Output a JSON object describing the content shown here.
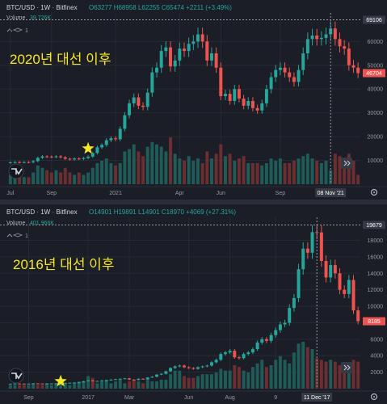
{
  "charts": [
    {
      "header": {
        "symbol": "BTC/USD",
        "interval": "1W",
        "exchange": "Bitfinex",
        "open": "O63277",
        "high": "H68958",
        "low": "L62255",
        "close": "C65474",
        "change": "+2211 (+3.49%)"
      },
      "volume_label": "Volume",
      "volume_value": "39.726K",
      "indicator_count": "1",
      "overlay_text": "2020년 대선 이후",
      "price_ticks": [
        "60000",
        "50000",
        "40000",
        "30000",
        "20000",
        "10000"
      ],
      "price_tick_values": [
        60000,
        50000,
        40000,
        30000,
        20000,
        10000
      ],
      "time_labels": [
        "Jul",
        "Sep",
        "2021",
        "Apr",
        "Jun",
        "Sep"
      ],
      "time_label_idx": [
        0,
        9,
        23,
        37,
        46,
        59
      ],
      "crosshair_time": "08 Nov '21",
      "crosshair_idx": 70,
      "high_label": "69106",
      "high_value": 69106,
      "last_label": "46704",
      "last_value": 46704,
      "star_idx": 17,
      "star_price": 15000,
      "colors": {
        "up": "#26a69a",
        "down": "#ef5350",
        "vol_up": "#1f5b57",
        "vol_down": "#6b2e31",
        "star": "#f5e629"
      }
    },
    {
      "header": {
        "symbol": "BTC/USD",
        "interval": "1W",
        "exchange": "Bitfinex",
        "open": "O14901",
        "high": "H19891",
        "low": "L14901",
        "close": "C18970",
        "change": "+4069 (+27.31%)"
      },
      "volume_label": "Volume",
      "volume_value": "401.966K",
      "indicator_count": "1",
      "overlay_text": "2016년 대선 이후",
      "price_ticks": [
        "18000",
        "16000",
        "14000",
        "12000",
        "10000",
        "8000",
        "6000",
        "4000",
        "2000"
      ],
      "price_tick_values": [
        18000,
        16000,
        14000,
        12000,
        10000,
        8000,
        6000,
        4000,
        2000
      ],
      "time_labels": [
        "Sep",
        "2017",
        "Mar",
        "Jun",
        "Aug",
        "9"
      ],
      "time_label_idx": [
        4,
        17,
        26,
        39,
        48,
        58
      ],
      "crosshair_time": "11 Dec '17",
      "crosshair_idx": 67,
      "high_label": "19879",
      "high_value": 19879,
      "last_label": "8185",
      "last_value": 8185,
      "star_idx": 11,
      "star_price": 900,
      "colors": {
        "up": "#26a69a",
        "down": "#ef5350",
        "vol_up": "#1f5b57",
        "vol_down": "#6b2e31",
        "star": "#f5e629"
      }
    }
  ],
  "chart_data": [
    {
      "type": "candlestick",
      "title": "BTC/USD · 1W · Bitfinex",
      "ylim": [
        0,
        72000
      ],
      "close": [
        9200,
        9300,
        9200,
        9300,
        9250,
        9700,
        11100,
        11700,
        11600,
        11500,
        11700,
        11300,
        10700,
        10400,
        10800,
        10600,
        11000,
        11600,
        13100,
        15500,
        16500,
        18500,
        19300,
        18900,
        23300,
        29000,
        34000,
        36500,
        33000,
        32500,
        38500,
        47000,
        49000,
        56000,
        57500,
        49500,
        52000,
        57000,
        56000,
        59000,
        60000,
        63000,
        60000,
        52000,
        55000,
        49000,
        37000,
        38000,
        35000,
        40000,
        36000,
        33000,
        35000,
        32000,
        31000,
        34000,
        40000,
        45000,
        48000,
        49000,
        47000,
        45000,
        43000,
        48000,
        55000,
        61000,
        62500,
        61000,
        61500,
        63000,
        65474,
        61000,
        58000,
        57000,
        50000,
        49000,
        46704
      ],
      "volume": [
        4,
        3,
        4,
        3,
        3,
        5,
        8,
        7,
        6,
        5,
        6,
        5,
        7,
        5,
        4,
        5,
        4,
        5,
        7,
        9,
        10,
        11,
        9,
        8,
        9,
        14,
        15,
        17,
        14,
        12,
        16,
        18,
        17,
        16,
        14,
        20,
        13,
        11,
        10,
        12,
        10,
        11,
        9,
        14,
        11,
        13,
        17,
        12,
        13,
        10,
        11,
        12,
        9,
        9,
        9,
        8,
        9,
        11,
        10,
        11,
        9,
        9,
        10,
        11,
        12,
        13,
        11,
        10,
        9,
        10,
        6,
        13,
        12,
        10,
        13,
        10,
        4
      ]
    },
    {
      "type": "candlestick",
      "title": "BTC/USD · 1W · Bitfinex",
      "ylim": [
        0,
        20800
      ],
      "close": [
        600,
        620,
        610,
        600,
        610,
        640,
        620,
        610,
        620,
        630,
        640,
        660,
        700,
        710,
        740,
        760,
        900,
        1000,
        900,
        930,
        1000,
        1000,
        1100,
        1150,
        1200,
        1250,
        1100,
        1050,
        1200,
        1150,
        1350,
        1450,
        1700,
        1800,
        2100,
        2500,
        2700,
        2800,
        2600,
        2500,
        2400,
        2600,
        2700,
        2800,
        3200,
        3500,
        4200,
        4400,
        4600,
        3800,
        3700,
        4200,
        4400,
        4800,
        5600,
        6000,
        5800,
        6500,
        7100,
        7800,
        8000,
        9800,
        11000,
        14500,
        17000,
        16500,
        19000,
        18970,
        15500,
        13500,
        15000,
        14000,
        12000,
        11500,
        13200,
        9500,
        8185
      ],
      "volume": [
        2,
        2,
        2,
        2,
        2,
        3,
        2,
        2,
        3,
        2,
        3,
        3,
        3,
        2,
        3,
        4,
        4,
        7,
        6,
        3,
        4,
        5,
        3,
        4,
        5,
        3,
        4,
        5,
        4,
        3,
        6,
        4,
        4,
        5,
        5,
        8,
        10,
        10,
        7,
        6,
        6,
        7,
        8,
        8,
        8,
        9,
        11,
        10,
        10,
        13,
        12,
        10,
        9,
        12,
        14,
        16,
        12,
        13,
        16,
        18,
        16,
        14,
        20,
        25,
        26,
        23,
        22,
        17,
        16,
        15,
        16,
        15,
        13,
        12,
        14,
        16,
        15
      ]
    }
  ]
}
